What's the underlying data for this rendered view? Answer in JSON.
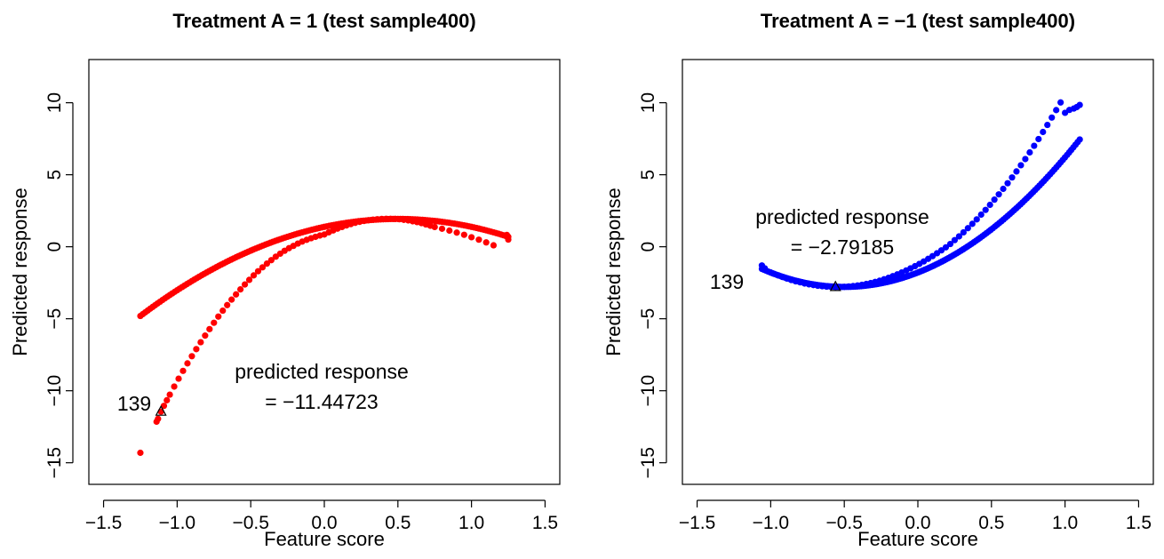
{
  "chart_data": [
    {
      "type": "scatter",
      "title": "Treatment A = 1 (test sample400)",
      "xlabel": "Feature score",
      "ylabel": "Predicted response",
      "xlim": [
        -1.6,
        1.6
      ],
      "ylim": [
        -16.5,
        13
      ],
      "xticks": [
        -1.5,
        -1.0,
        -0.5,
        0.0,
        0.5,
        1.0,
        1.5
      ],
      "xtick_labels": [
        "−1.5",
        "−1.0",
        "−0.5",
        "0.0",
        "0.5",
        "1.0",
        "1.5"
      ],
      "yticks": [
        -15,
        -10,
        -5,
        0,
        5,
        10
      ],
      "ytick_labels": [
        "−15",
        "−10",
        "−5",
        "0",
        "5",
        "10"
      ],
      "point_color": "#ff0000",
      "curve": {
        "a": -2.2,
        "b": 2.2,
        "c": 1.38,
        "x_min": -1.25,
        "x_max": 1.25
      },
      "x": [
        -1.25,
        -1.14,
        -1.13,
        -1.11,
        -1.09,
        -1.07,
        -1.05,
        -1.02,
        -0.99,
        -0.96,
        -0.93,
        -0.9,
        -0.87,
        -0.84,
        -0.81,
        -0.78,
        -0.75,
        -0.72,
        -0.69,
        -0.66,
        -0.63,
        -0.6,
        -0.57,
        -0.54,
        -0.51,
        -0.48,
        -0.45,
        -0.42,
        -0.39,
        -0.36,
        -0.33,
        -0.3,
        -0.27,
        -0.24,
        -0.21,
        -0.18,
        -0.15,
        -0.12,
        -0.09,
        -0.06,
        -0.03,
        0.0,
        0.03,
        0.06,
        0.09,
        0.12,
        0.15,
        0.18,
        0.21,
        0.24,
        0.27,
        0.3,
        0.33,
        0.36,
        0.39,
        0.42,
        0.45,
        0.48,
        0.51,
        0.54,
        0.57,
        0.6,
        0.63,
        0.66,
        0.69,
        0.72,
        0.75,
        0.8,
        0.85,
        0.9,
        0.95,
        1.0,
        1.05,
        1.1,
        1.15,
        1.24,
        1.25
      ],
      "y": [
        -14.31,
        -12.15,
        -11.95,
        -11.45,
        -11.05,
        -10.66,
        -10.27,
        -9.71,
        -9.16,
        -8.62,
        -8.1,
        -7.6,
        -7.11,
        -6.63,
        -6.17,
        -5.72,
        -5.28,
        -4.85,
        -4.44,
        -4.05,
        -3.67,
        -3.31,
        -2.96,
        -2.62,
        -2.3,
        -1.99,
        -1.7,
        -1.43,
        -1.17,
        -0.93,
        -0.69,
        -0.48,
        -0.28,
        -0.1,
        0.06,
        0.22,
        0.36,
        0.48,
        0.59,
        0.69,
        0.78,
        0.85,
        1.0,
        1.13,
        1.26,
        1.37,
        1.48,
        1.57,
        1.66,
        1.73,
        1.79,
        1.84,
        1.88,
        1.91,
        1.93,
        1.94,
        1.94,
        1.93,
        1.91,
        1.87,
        1.83,
        1.77,
        1.71,
        1.64,
        1.55,
        1.46,
        1.37,
        1.25,
        1.12,
        0.98,
        0.83,
        0.66,
        0.49,
        0.3,
        0.1,
        0.82,
        0.5
      ],
      "highlight": {
        "x": -1.11,
        "y": -11.45,
        "label": "139"
      },
      "annotation_lines": [
        "predicted response",
        "= −11.44723"
      ]
    },
    {
      "type": "scatter",
      "title": "Treatment A = −1 (test sample400)",
      "xlabel": "Feature score",
      "ylabel": "Predicted response",
      "xlim": [
        -1.6,
        1.6
      ],
      "ylim": [
        -16.5,
        13
      ],
      "xticks": [
        -1.5,
        -1.0,
        -0.5,
        0.0,
        0.5,
        1.0,
        1.5
      ],
      "xtick_labels": [
        "−1.5",
        "−1.0",
        "−0.5",
        "0.0",
        "0.5",
        "1.0",
        "1.5"
      ],
      "yticks": [
        -15,
        -10,
        -5,
        0,
        5,
        10
      ],
      "ytick_labels": [
        "−15",
        "−10",
        "−5",
        "0",
        "5",
        "10"
      ],
      "point_color": "#0000ff",
      "curve": {
        "a": 4.0,
        "b": 4.0,
        "c": -1.79,
        "x_min": -1.06,
        "x_max": 1.1
      },
      "x": [
        -1.06,
        -1.04,
        -1.0,
        -0.98,
        -0.95,
        -0.92,
        -0.89,
        -0.86,
        -0.83,
        -0.8,
        -0.77,
        -0.74,
        -0.71,
        -0.68,
        -0.65,
        -0.62,
        -0.59,
        -0.56,
        -0.53,
        -0.5,
        -0.47,
        -0.44,
        -0.41,
        -0.38,
        -0.35,
        -0.32,
        -0.29,
        -0.26,
        -0.23,
        -0.2,
        -0.17,
        -0.14,
        -0.11,
        -0.08,
        -0.05,
        -0.02,
        0.01,
        0.04,
        0.07,
        0.1,
        0.13,
        0.16,
        0.19,
        0.22,
        0.25,
        0.28,
        0.31,
        0.34,
        0.37,
        0.4,
        0.43,
        0.46,
        0.49,
        0.52,
        0.55,
        0.58,
        0.61,
        0.64,
        0.67,
        0.7,
        0.73,
        0.76,
        0.79,
        0.82,
        0.85,
        0.88,
        0.91,
        0.94,
        0.97,
        1.0,
        1.03,
        1.06,
        1.08,
        1.1
      ],
      "y": [
        -1.3,
        -1.5,
        -1.79,
        -1.87,
        -1.99,
        -2.1,
        -2.21,
        -2.31,
        -2.4,
        -2.47,
        -2.55,
        -2.61,
        -2.66,
        -2.71,
        -2.74,
        -2.77,
        -2.78,
        -2.79,
        -2.79,
        -2.78,
        -2.76,
        -2.73,
        -2.69,
        -2.64,
        -2.58,
        -2.52,
        -2.44,
        -2.36,
        -2.26,
        -2.16,
        -2.04,
        -1.92,
        -1.79,
        -1.65,
        -1.5,
        -1.35,
        -1.19,
        -1.02,
        -0.84,
        -0.65,
        -0.45,
        -0.25,
        -0.04,
        0.19,
        0.46,
        0.72,
        1.0,
        1.29,
        1.59,
        1.9,
        2.23,
        2.56,
        2.91,
        3.27,
        3.64,
        4.02,
        4.41,
        4.81,
        5.23,
        5.66,
        6.09,
        6.55,
        7.01,
        7.48,
        7.97,
        8.46,
        8.97,
        9.49,
        10.02,
        9.3,
        9.5,
        9.6,
        9.7,
        9.85
      ],
      "highlight": {
        "x": -0.56,
        "y": -2.79,
        "label": "139"
      },
      "annotation_lines": [
        "predicted response",
        "= −2.79185"
      ]
    }
  ]
}
